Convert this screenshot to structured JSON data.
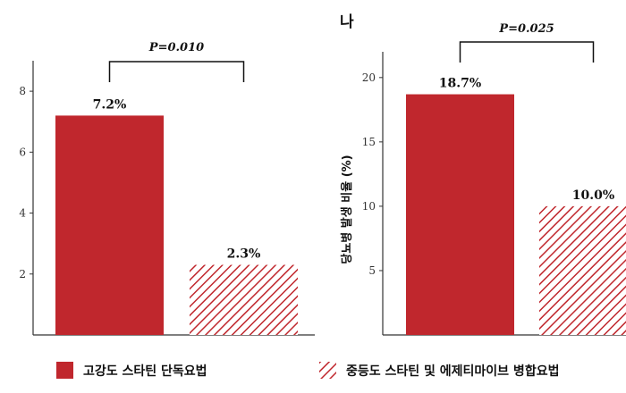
{
  "colors": {
    "bar": "#c0272d",
    "axis": "#333333"
  },
  "legend": {
    "items": [
      {
        "label": "고강도 스타틴 단독요법",
        "fill": "solid"
      },
      {
        "label": "중등도 스타틴 및 에제티마이브 병합요법",
        "fill": "hatched"
      }
    ]
  },
  "chart_data": [
    {
      "type": "bar",
      "panel_label": "",
      "ylabel": "",
      "ylim": [
        0,
        9
      ],
      "yticks": [
        2,
        4,
        6,
        8
      ],
      "categories": [
        "고강도 스타틴 단독요법",
        "중등도 스타틴 및 에제티마이브 병합요법"
      ],
      "values": [
        7.2,
        2.3
      ],
      "data_labels": [
        "7.2%",
        "2.3%"
      ],
      "p_value": "P=0.010"
    },
    {
      "type": "bar",
      "panel_label": "나",
      "ylabel": "당뇨병 발생 비율 (%)",
      "ylim": [
        0,
        22
      ],
      "yticks": [
        5,
        10,
        15,
        20
      ],
      "categories": [
        "고강도 스타틴 단독요법",
        "중등도 스타틴 및 에제티마이브 병합요법"
      ],
      "values": [
        18.7,
        10.0
      ],
      "data_labels": [
        "18.7%",
        "10.0%"
      ],
      "p_value": "P=0.025"
    }
  ]
}
